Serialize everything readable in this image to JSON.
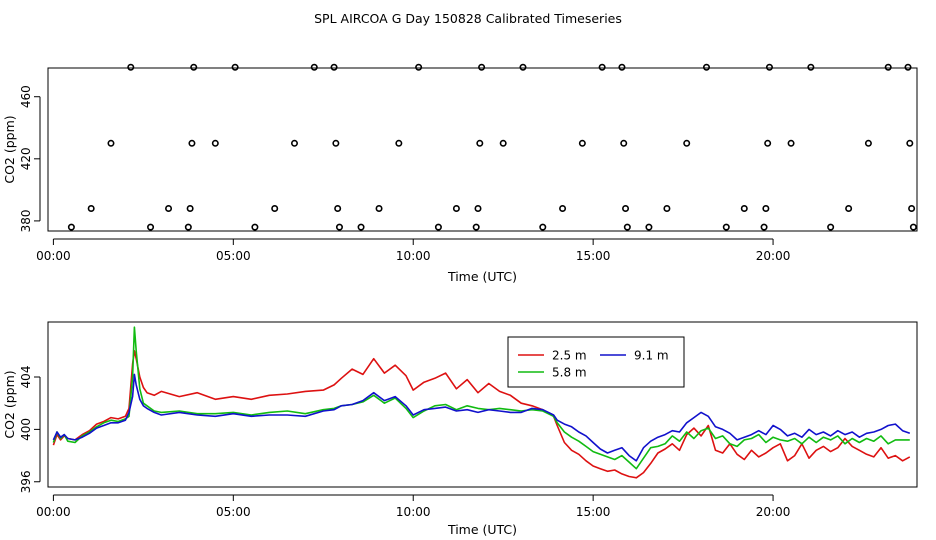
{
  "figure_title": "SPL AIRCOA G  Day 150828  Calibrated Timeseries",
  "colors": {
    "red": "#dd1111",
    "green": "#11bb11",
    "blue": "#1111cc",
    "axis": "#000000"
  },
  "chart_data": [
    {
      "type": "scatter",
      "title": "",
      "xlabel": "Time (UTC)",
      "ylabel": "CO2 (ppm)",
      "xlim": [
        -0.15,
        24.0
      ],
      "ylim": [
        373.5,
        478.5
      ],
      "xticks": [
        0,
        5,
        10,
        15,
        20
      ],
      "xtick_labels": [
        "00:00",
        "05:00",
        "10:00",
        "15:00",
        "20:00"
      ],
      "yticks": [
        380,
        420,
        460
      ],
      "ytick_labels": [
        "380",
        "420",
        "460"
      ],
      "marker_points": [
        {
          "x": 0.5,
          "y": 376
        },
        {
          "x": 1.05,
          "y": 388
        },
        {
          "x": 1.6,
          "y": 430
        },
        {
          "x": 2.15,
          "y": 479
        },
        {
          "x": 2.7,
          "y": 376
        },
        {
          "x": 3.2,
          "y": 388
        },
        {
          "x": 3.75,
          "y": 376
        },
        {
          "x": 3.8,
          "y": 388
        },
        {
          "x": 3.85,
          "y": 430
        },
        {
          "x": 3.9,
          "y": 479
        },
        {
          "x": 4.5,
          "y": 430
        },
        {
          "x": 5.05,
          "y": 479
        },
        {
          "x": 5.6,
          "y": 376
        },
        {
          "x": 6.15,
          "y": 388
        },
        {
          "x": 6.7,
          "y": 430
        },
        {
          "x": 7.25,
          "y": 479
        },
        {
          "x": 7.8,
          "y": 479
        },
        {
          "x": 7.85,
          "y": 430
        },
        {
          "x": 7.9,
          "y": 388
        },
        {
          "x": 7.95,
          "y": 376
        },
        {
          "x": 8.55,
          "y": 376
        },
        {
          "x": 9.05,
          "y": 388
        },
        {
          "x": 9.6,
          "y": 430
        },
        {
          "x": 10.15,
          "y": 479
        },
        {
          "x": 10.7,
          "y": 376
        },
        {
          "x": 11.2,
          "y": 388
        },
        {
          "x": 11.75,
          "y": 376
        },
        {
          "x": 11.8,
          "y": 388
        },
        {
          "x": 11.85,
          "y": 430
        },
        {
          "x": 11.9,
          "y": 479
        },
        {
          "x": 12.5,
          "y": 430
        },
        {
          "x": 13.05,
          "y": 479
        },
        {
          "x": 13.6,
          "y": 376
        },
        {
          "x": 14.15,
          "y": 388
        },
        {
          "x": 14.7,
          "y": 430
        },
        {
          "x": 15.25,
          "y": 479
        },
        {
          "x": 15.8,
          "y": 479
        },
        {
          "x": 15.85,
          "y": 430
        },
        {
          "x": 15.9,
          "y": 388
        },
        {
          "x": 15.95,
          "y": 376
        },
        {
          "x": 16.55,
          "y": 376
        },
        {
          "x": 17.05,
          "y": 388
        },
        {
          "x": 17.6,
          "y": 430
        },
        {
          "x": 18.15,
          "y": 479
        },
        {
          "x": 18.7,
          "y": 376
        },
        {
          "x": 19.2,
          "y": 388
        },
        {
          "x": 19.75,
          "y": 376
        },
        {
          "x": 19.8,
          "y": 388
        },
        {
          "x": 19.85,
          "y": 430
        },
        {
          "x": 19.9,
          "y": 479
        },
        {
          "x": 20.5,
          "y": 430
        },
        {
          "x": 21.05,
          "y": 479
        },
        {
          "x": 21.6,
          "y": 376
        },
        {
          "x": 22.1,
          "y": 388
        },
        {
          "x": 22.65,
          "y": 430
        },
        {
          "x": 23.2,
          "y": 479
        },
        {
          "x": 23.75,
          "y": 479
        },
        {
          "x": 23.8,
          "y": 430
        },
        {
          "x": 23.85,
          "y": 388
        },
        {
          "x": 23.9,
          "y": 376
        }
      ]
    },
    {
      "type": "line",
      "title": "",
      "xlabel": "Time (UTC)",
      "ylabel": "CO2 (ppm)",
      "xlim": [
        -0.15,
        24.0
      ],
      "ylim": [
        395.6,
        408.2
      ],
      "xticks": [
        0,
        5,
        10,
        15,
        20
      ],
      "xtick_labels": [
        "00:00",
        "05:00",
        "10:00",
        "15:00",
        "20:00"
      ],
      "yticks": [
        396,
        400,
        404
      ],
      "ytick_labels": [
        "396",
        "400",
        "404"
      ],
      "legend_position": "top-right",
      "x": [
        0.0,
        0.1,
        0.2,
        0.3,
        0.4,
        0.6,
        0.8,
        1.0,
        1.2,
        1.4,
        1.6,
        1.8,
        2.0,
        2.1,
        2.2,
        2.25,
        2.3,
        2.4,
        2.5,
        2.6,
        2.8,
        3.0,
        3.5,
        4.0,
        4.5,
        5.0,
        5.5,
        6.0,
        6.5,
        7.0,
        7.5,
        7.8,
        8.0,
        8.3,
        8.6,
        8.9,
        9.2,
        9.5,
        9.8,
        10.0,
        10.3,
        10.6,
        10.9,
        11.2,
        11.5,
        11.8,
        12.1,
        12.4,
        12.7,
        13.0,
        13.3,
        13.6,
        13.9,
        14.0,
        14.2,
        14.4,
        14.6,
        14.8,
        15.0,
        15.2,
        15.4,
        15.6,
        15.8,
        16.0,
        16.2,
        16.4,
        16.6,
        16.8,
        17.0,
        17.2,
        17.4,
        17.6,
        17.8,
        18.0,
        18.2,
        18.4,
        18.6,
        18.8,
        19.0,
        19.2,
        19.4,
        19.6,
        19.8,
        20.0,
        20.2,
        20.4,
        20.6,
        20.8,
        21.0,
        21.2,
        21.4,
        21.6,
        21.8,
        22.0,
        22.2,
        22.4,
        22.6,
        22.8,
        23.0,
        23.2,
        23.4,
        23.6,
        23.8
      ],
      "series": [
        {
          "name": "2.5 m",
          "color": "#dd1111",
          "values": [
            398.8,
            399.6,
            399.2,
            399.5,
            399.3,
            399.2,
            399.6,
            399.9,
            400.4,
            400.6,
            400.9,
            400.8,
            401.0,
            401.6,
            405.0,
            406.0,
            405.4,
            404.0,
            403.2,
            402.8,
            402.6,
            402.9,
            402.5,
            402.8,
            402.3,
            402.5,
            402.3,
            402.6,
            402.7,
            402.9,
            403.0,
            403.4,
            403.9,
            404.6,
            404.2,
            405.4,
            404.3,
            404.9,
            404.1,
            403.0,
            403.6,
            403.9,
            404.3,
            403.1,
            403.8,
            402.8,
            403.5,
            402.9,
            402.6,
            402.0,
            401.8,
            401.5,
            401.0,
            400.3,
            399.0,
            398.4,
            398.1,
            397.6,
            397.2,
            397.0,
            396.8,
            396.9,
            396.6,
            396.4,
            396.3,
            396.7,
            397.4,
            398.2,
            398.5,
            398.9,
            398.4,
            399.6,
            400.1,
            399.5,
            400.3,
            398.4,
            398.2,
            398.9,
            398.1,
            397.7,
            398.4,
            397.9,
            398.2,
            398.6,
            398.9,
            397.6,
            398.0,
            398.9,
            397.8,
            398.4,
            398.7,
            398.3,
            398.6,
            399.3,
            398.7,
            398.4,
            398.1,
            397.9,
            398.6,
            397.8,
            398.0,
            397.6,
            397.9
          ]
        },
        {
          "name": "5.8 m",
          "color": "#11bb11",
          "values": [
            399.0,
            399.8,
            399.3,
            399.6,
            399.1,
            399.0,
            399.5,
            399.8,
            400.2,
            400.5,
            400.7,
            400.6,
            400.8,
            401.0,
            404.0,
            407.8,
            406.0,
            403.1,
            402.0,
            401.8,
            401.4,
            401.3,
            401.4,
            401.2,
            401.2,
            401.3,
            401.1,
            401.3,
            401.4,
            401.2,
            401.5,
            401.6,
            401.8,
            401.9,
            402.1,
            402.6,
            402.0,
            402.4,
            401.6,
            400.9,
            401.4,
            401.8,
            401.9,
            401.5,
            401.8,
            401.6,
            401.5,
            401.6,
            401.5,
            401.4,
            401.5,
            401.4,
            401.0,
            400.5,
            399.8,
            399.4,
            399.1,
            398.7,
            398.3,
            398.1,
            397.9,
            397.7,
            398.0,
            397.5,
            397.0,
            397.8,
            398.6,
            398.7,
            398.9,
            399.5,
            399.1,
            399.8,
            399.3,
            399.9,
            400.1,
            399.3,
            399.5,
            398.9,
            398.7,
            399.2,
            399.3,
            399.6,
            399.0,
            399.4,
            399.2,
            399.1,
            399.3,
            398.9,
            399.4,
            399.0,
            399.4,
            399.2,
            399.5,
            398.9,
            399.3,
            399.0,
            399.3,
            399.1,
            399.5,
            398.9,
            399.2,
            399.2,
            399.2
          ]
        },
        {
          "name": "9.1 m",
          "color": "#1111cc",
          "values": [
            399.2,
            399.8,
            399.4,
            399.6,
            399.3,
            399.2,
            399.4,
            399.7,
            400.1,
            400.3,
            400.5,
            400.5,
            400.7,
            401.3,
            402.5,
            404.2,
            403.4,
            402.3,
            401.8,
            401.6,
            401.3,
            401.1,
            401.3,
            401.1,
            401.0,
            401.2,
            401.0,
            401.1,
            401.1,
            401.0,
            401.4,
            401.5,
            401.8,
            401.9,
            402.2,
            402.8,
            402.2,
            402.5,
            401.8,
            401.1,
            401.5,
            401.6,
            401.7,
            401.4,
            401.5,
            401.3,
            401.5,
            401.4,
            401.3,
            401.3,
            401.6,
            401.5,
            401.1,
            400.7,
            400.4,
            400.2,
            399.8,
            399.5,
            399.0,
            398.5,
            398.2,
            398.4,
            398.6,
            398.0,
            397.6,
            398.6,
            399.1,
            399.4,
            399.6,
            399.9,
            399.8,
            400.5,
            400.9,
            401.3,
            401.0,
            400.2,
            400.0,
            399.7,
            399.2,
            399.4,
            399.6,
            399.9,
            399.6,
            400.3,
            400.0,
            399.5,
            399.7,
            399.4,
            400.0,
            399.6,
            399.8,
            399.5,
            399.9,
            399.6,
            399.8,
            399.4,
            399.7,
            399.8,
            400.0,
            400.3,
            400.4,
            399.9,
            399.7
          ]
        }
      ]
    }
  ]
}
